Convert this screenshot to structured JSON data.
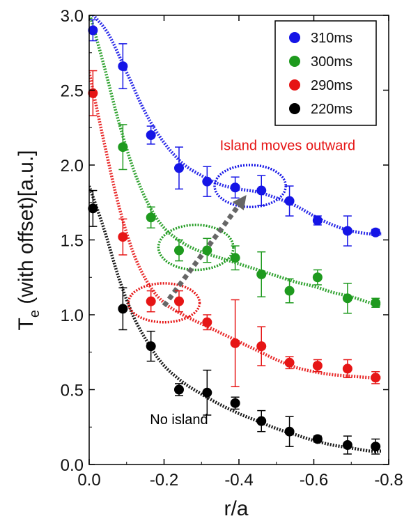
{
  "chart_data": {
    "type": "scatter",
    "title": "",
    "xlabel": "r/a",
    "ylabel": "T_e (with offset)[a.u.]",
    "ylabel_main": "T",
    "ylabel_sub": "e",
    "ylabel_rest": " (with offset)[a.u.]",
    "xlim": [
      0.0,
      -0.8
    ],
    "ylim": [
      0.0,
      3.0
    ],
    "x_ticks": [
      0.0,
      -0.2,
      -0.4,
      -0.6,
      -0.8
    ],
    "x_tick_labels": [
      "0.0",
      "-0.2",
      "-0.4",
      "-0.6",
      "-0.8"
    ],
    "y_ticks": [
      0.0,
      0.5,
      1.0,
      1.5,
      2.0,
      2.5,
      3.0
    ],
    "y_tick_labels": [
      "0.0",
      "0.5",
      "1.0",
      "1.5",
      "2.0",
      "2.5",
      "3.0"
    ],
    "legend_position": "top-right",
    "series": [
      {
        "name": "310ms",
        "color": "#1515e6",
        "x": [
          -0.01,
          -0.09,
          -0.165,
          -0.24,
          -0.315,
          -0.39,
          -0.46,
          -0.535,
          -0.61,
          -0.69,
          -0.765
        ],
        "y": [
          2.9,
          2.66,
          2.2,
          1.98,
          1.89,
          1.85,
          1.83,
          1.76,
          1.63,
          1.56,
          1.55
        ],
        "err": [
          0.07,
          0.15,
          0.06,
          0.14,
          0.1,
          0.07,
          0.1,
          0.1,
          0.03,
          0.1,
          0.02
        ],
        "fit": [
          [
            0.0,
            3.03
          ],
          [
            -0.05,
            2.88
          ],
          [
            -0.1,
            2.62
          ],
          [
            -0.15,
            2.35
          ],
          [
            -0.2,
            2.15
          ],
          [
            -0.25,
            2.01
          ],
          [
            -0.3,
            1.93
          ],
          [
            -0.35,
            1.87
          ],
          [
            -0.4,
            1.84
          ],
          [
            -0.45,
            1.82
          ],
          [
            -0.5,
            1.78
          ],
          [
            -0.55,
            1.73
          ],
          [
            -0.6,
            1.66
          ],
          [
            -0.65,
            1.6
          ],
          [
            -0.7,
            1.56
          ],
          [
            -0.75,
            1.54
          ],
          [
            -0.78,
            1.54
          ]
        ]
      },
      {
        "name": "300ms",
        "color": "#1e9a1e",
        "x": [
          -0.09,
          -0.165,
          -0.24,
          -0.315,
          -0.39,
          -0.46,
          -0.535,
          -0.61,
          -0.69,
          -0.765
        ],
        "y": [
          2.12,
          1.65,
          1.43,
          1.43,
          1.38,
          1.27,
          1.16,
          1.25,
          1.11,
          1.08
        ],
        "err": [
          0.15,
          0.07,
          0.07,
          0.08,
          0.08,
          0.15,
          0.08,
          0.05,
          0.1,
          0.03
        ],
        "fit": [
          [
            0.0,
            3.02
          ],
          [
            -0.04,
            2.66
          ],
          [
            -0.08,
            2.28
          ],
          [
            -0.12,
            1.96
          ],
          [
            -0.16,
            1.73
          ],
          [
            -0.2,
            1.58
          ],
          [
            -0.25,
            1.48
          ],
          [
            -0.3,
            1.42
          ],
          [
            -0.35,
            1.38
          ],
          [
            -0.4,
            1.34
          ],
          [
            -0.45,
            1.3
          ],
          [
            -0.5,
            1.26
          ],
          [
            -0.55,
            1.22
          ],
          [
            -0.6,
            1.19
          ],
          [
            -0.65,
            1.15
          ],
          [
            -0.7,
            1.12
          ],
          [
            -0.75,
            1.08
          ],
          [
            -0.78,
            1.06
          ]
        ]
      },
      {
        "name": "290ms",
        "color": "#e61515",
        "x": [
          -0.01,
          -0.09,
          -0.165,
          -0.24,
          -0.315,
          -0.39,
          -0.46,
          -0.535,
          -0.61,
          -0.69,
          -0.765
        ],
        "y": [
          2.48,
          1.52,
          1.09,
          1.09,
          0.95,
          0.81,
          0.79,
          0.68,
          0.66,
          0.64,
          0.58
        ],
        "err": [
          0.15,
          0.12,
          0.07,
          0.07,
          0.05,
          0.29,
          0.13,
          0.04,
          0.04,
          0.06,
          0.04
        ],
        "fit": [
          [
            0.0,
            2.62
          ],
          [
            -0.04,
            2.15
          ],
          [
            -0.08,
            1.72
          ],
          [
            -0.12,
            1.4
          ],
          [
            -0.16,
            1.2
          ],
          [
            -0.2,
            1.08
          ],
          [
            -0.25,
            1.0
          ],
          [
            -0.3,
            0.94
          ],
          [
            -0.35,
            0.88
          ],
          [
            -0.4,
            0.82
          ],
          [
            -0.45,
            0.76
          ],
          [
            -0.5,
            0.7
          ],
          [
            -0.55,
            0.65
          ],
          [
            -0.6,
            0.62
          ],
          [
            -0.65,
            0.6
          ],
          [
            -0.7,
            0.59
          ],
          [
            -0.75,
            0.58
          ],
          [
            -0.78,
            0.58
          ]
        ]
      },
      {
        "name": "220ms",
        "color": "#000000",
        "x": [
          -0.01,
          -0.09,
          -0.165,
          -0.24,
          -0.315,
          -0.39,
          -0.46,
          -0.535,
          -0.61,
          -0.69,
          -0.765
        ],
        "y": [
          1.71,
          1.04,
          0.79,
          0.5,
          0.48,
          0.41,
          0.29,
          0.22,
          0.17,
          0.13,
          0.12
        ],
        "err": [
          0.12,
          0.14,
          0.1,
          0.04,
          0.15,
          0.04,
          0.07,
          0.1,
          0.02,
          0.06,
          0.05
        ],
        "fit": [
          [
            0.0,
            1.86
          ],
          [
            -0.04,
            1.57
          ],
          [
            -0.08,
            1.24
          ],
          [
            -0.12,
            0.98
          ],
          [
            -0.16,
            0.8
          ],
          [
            -0.2,
            0.66
          ],
          [
            -0.25,
            0.55
          ],
          [
            -0.3,
            0.47
          ],
          [
            -0.35,
            0.4
          ],
          [
            -0.4,
            0.34
          ],
          [
            -0.45,
            0.29
          ],
          [
            -0.5,
            0.24
          ],
          [
            -0.55,
            0.2
          ],
          [
            -0.6,
            0.16
          ],
          [
            -0.65,
            0.13
          ],
          [
            -0.7,
            0.11
          ],
          [
            -0.75,
            0.09
          ],
          [
            -0.78,
            0.09
          ]
        ]
      }
    ],
    "ellipses": [
      {
        "cx": -0.43,
        "cy": 1.86,
        "rx": 0.095,
        "ry": 0.14,
        "color": "#1515e6"
      },
      {
        "cx": -0.285,
        "cy": 1.45,
        "rx": 0.1,
        "ry": 0.15,
        "color": "#1e9a1e"
      },
      {
        "cx": -0.2,
        "cy": 1.08,
        "rx": 0.095,
        "ry": 0.13,
        "color": "#e61515"
      }
    ],
    "arrow": {
      "from": [
        -0.2,
        1.06
      ],
      "to": [
        -0.42,
        1.8
      ],
      "color": "#666666"
    },
    "annotations": [
      {
        "text": "Island moves outward",
        "x": -0.53,
        "y": 2.1,
        "color": "#e61515"
      },
      {
        "text": "No island",
        "x": -0.24,
        "y": 0.27,
        "color": "#000000"
      }
    ]
  }
}
